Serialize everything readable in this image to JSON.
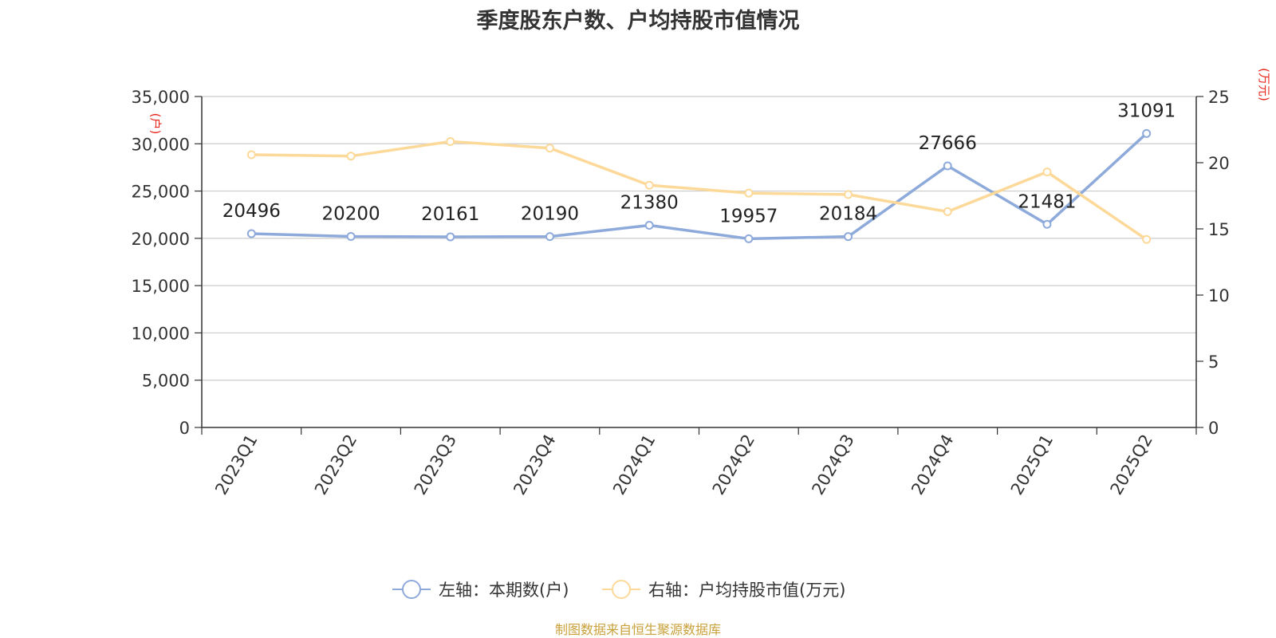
{
  "chart_data": {
    "type": "line",
    "title": "季度股东户数、户均持股市值情况",
    "categories": [
      "2023Q1",
      "2023Q2",
      "2023Q3",
      "2023Q4",
      "2024Q1",
      "2024Q2",
      "2024Q3",
      "2024Q4",
      "2025Q1",
      "2025Q2"
    ],
    "series": [
      {
        "name": "左轴：本期数(户)",
        "axis": "left",
        "color": "#8eaadb",
        "values": [
          20496,
          20200,
          20161,
          20190,
          21380,
          19957,
          20184,
          27666,
          21481,
          31091
        ],
        "data_labels": [
          "20496",
          "20200",
          "20161",
          "20190",
          "21380",
          "19957",
          "20184",
          "27666",
          "21481",
          "31091"
        ]
      },
      {
        "name": "右轴：户均持股市值(万元)",
        "axis": "right",
        "color": "#fcd999",
        "values": [
          20.6,
          20.5,
          21.6,
          21.1,
          18.3,
          17.7,
          17.6,
          16.3,
          19.3,
          14.2
        ]
      }
    ],
    "y_left": {
      "unit_label": "(户)",
      "ylim": [
        0,
        35000
      ],
      "ticks": [
        "0",
        "5,000",
        "10,000",
        "15,000",
        "20,000",
        "25,000",
        "30,000",
        "35,000"
      ]
    },
    "y_right": {
      "unit_label": "(万元)",
      "ylim": [
        0,
        25
      ],
      "ticks": [
        "0",
        "5",
        "10",
        "15",
        "20",
        "25"
      ]
    },
    "grid": true,
    "legend_position": "bottom-center",
    "unit_label_color": "#e8261c"
  },
  "footer": {
    "source": "制图数据来自恒生聚源数据库"
  }
}
